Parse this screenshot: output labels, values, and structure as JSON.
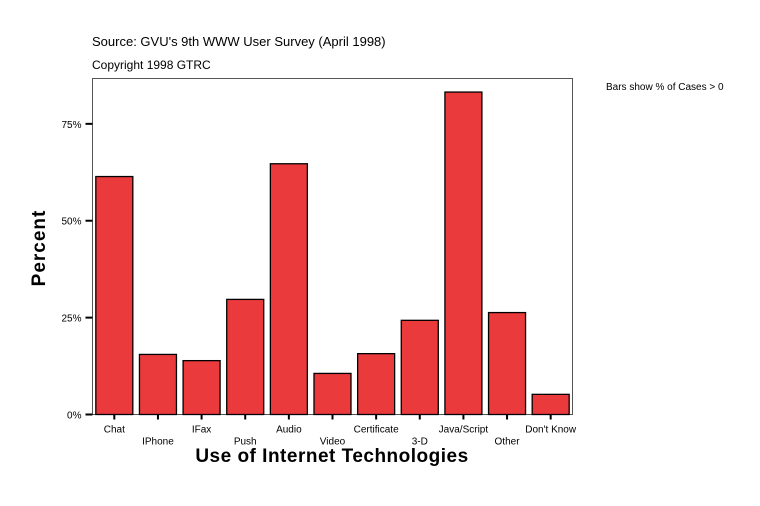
{
  "header": {
    "source": "Source: GVU's 9th WWW User Survey (April 1998)",
    "copyright": "Copyright 1998 GTRC",
    "note": "Bars show % of Cases > 0"
  },
  "chart_data": {
    "type": "bar",
    "title": "",
    "xlabel": "Use of Internet Technologies",
    "ylabel": "Percent",
    "categories": [
      "Chat",
      "IPhone",
      "IFax",
      "Push",
      "Audio",
      "Video",
      "Certificate",
      "3-D",
      "Java/Script",
      "Other",
      "Don't Know"
    ],
    "values": [
      61.4,
      15.5,
      13.9,
      29.7,
      64.7,
      10.6,
      15.7,
      24.3,
      83.2,
      26.3,
      5.2
    ],
    "ylim": [
      0,
      86.7
    ],
    "yticks": [
      0,
      25,
      50,
      75
    ],
    "ytick_labels": [
      "0%",
      "25%",
      "50%",
      "75%"
    ],
    "grid": false,
    "legend": "none",
    "bar_color": "#EB3A3C"
  }
}
